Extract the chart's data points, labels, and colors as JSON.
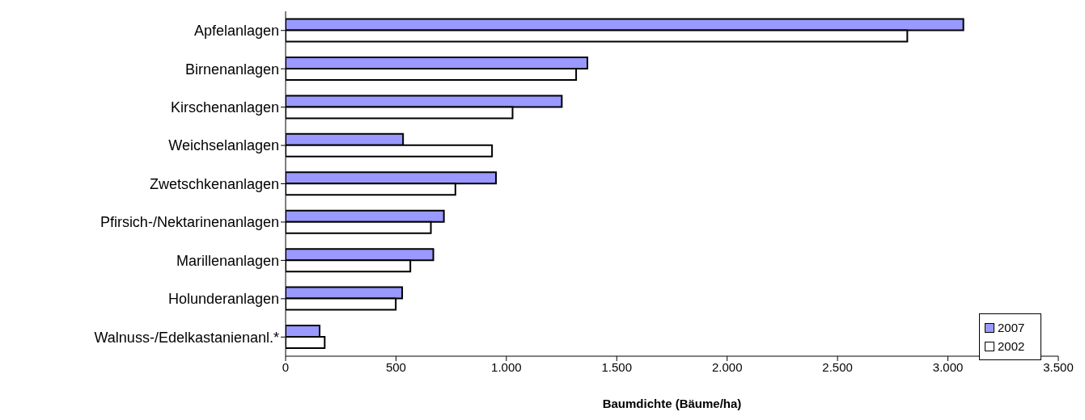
{
  "chart_data": {
    "type": "bar",
    "orientation": "horizontal",
    "xlabel": "Baumdichte (Bäume/ha)",
    "categories": [
      "Apfelanlagen",
      "Birnenanlagen",
      "Kirschenanlagen",
      "Weichselanlagen",
      "Zwetschkenanlagen",
      "Pfirsich-/Nektarinenanlagen",
      "Marillenanlagen",
      "Holunderanlagen",
      "Walnuss-/Edelkastanienanl.*"
    ],
    "series": [
      {
        "name": "2007",
        "color": "#9999ff",
        "values": [
          3070,
          1367,
          1251,
          532,
          953,
          717,
          669,
          528,
          154
        ]
      },
      {
        "name": "2002",
        "color": "#ffffff",
        "values": [
          2816,
          1316,
          1028,
          935,
          769,
          658,
          565,
          499,
          177
        ]
      }
    ],
    "xlim": [
      0,
      3500
    ],
    "xticks": [
      {
        "value": 0,
        "label": "0"
      },
      {
        "value": 500,
        "label": "500"
      },
      {
        "value": 1000,
        "label": "1.000"
      },
      {
        "value": 1500,
        "label": "1.500"
      },
      {
        "value": 2000,
        "label": "2.000"
      },
      {
        "value": 2500,
        "label": "2.500"
      },
      {
        "value": 3000,
        "label": "3.000"
      },
      {
        "value": 3500,
        "label": "3.500"
      }
    ],
    "grid": false,
    "legend": "bottom right"
  }
}
